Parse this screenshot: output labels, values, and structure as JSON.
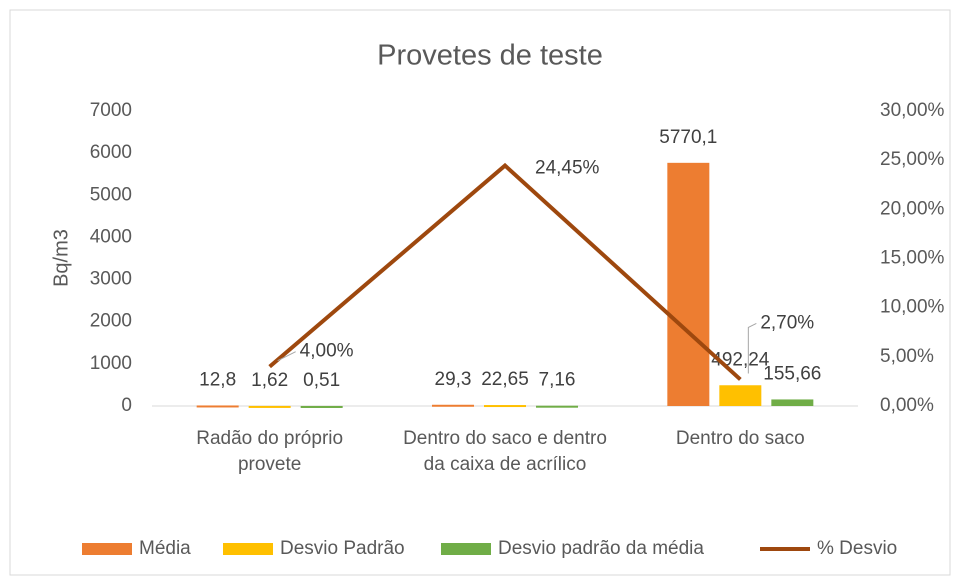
{
  "chart_data": {
    "type": "bar",
    "title": "Provetes de teste",
    "y_label": "Bq/m3",
    "categories": [
      "Radão do próprio provete",
      "Dentro do saco e dentro da caixa de acrílico",
      "Dentro do saco"
    ],
    "series": [
      {
        "name": "Média",
        "color": "#ED7D31",
        "values": [
          12.8,
          29.3,
          5770.1
        ],
        "value_labels": [
          "12,8",
          "29,3",
          "5770,1"
        ]
      },
      {
        "name": "Desvio Padrão",
        "color": "#FFC000",
        "values": [
          1.62,
          22.65,
          492.24
        ],
        "value_labels": [
          "1,62",
          "22,65",
          "492,24"
        ]
      },
      {
        "name": "Desvio padrão da média",
        "color": "#70AD47",
        "values": [
          0.51,
          7.16,
          155.66
        ],
        "value_labels": [
          "0,51",
          "7,16",
          "155,66"
        ]
      },
      {
        "name": "% Desvio",
        "color": "#9E480E",
        "type": "line",
        "axis": "y2",
        "values": [
          4.0,
          24.45,
          2.7
        ],
        "value_labels": [
          "4,00%",
          "24,45%",
          "2,70%"
        ]
      }
    ],
    "ylim": [
      0,
      7000
    ],
    "yticks": [
      0,
      1000,
      2000,
      3000,
      4000,
      5000,
      6000,
      7000
    ],
    "y2lim": [
      0,
      30
    ],
    "y2ticks": [
      {
        "value": 0,
        "label": "0,00%"
      },
      {
        "value": 5,
        "label": "5,00%"
      },
      {
        "value": 10,
        "label": "10,00%"
      },
      {
        "value": 15,
        "label": "15,00%"
      },
      {
        "value": 20,
        "label": "20,00%"
      },
      {
        "value": 25,
        "label": "25,00%"
      },
      {
        "value": 30,
        "label": "30,00%"
      }
    ],
    "grid": false,
    "legend": "bottom"
  }
}
